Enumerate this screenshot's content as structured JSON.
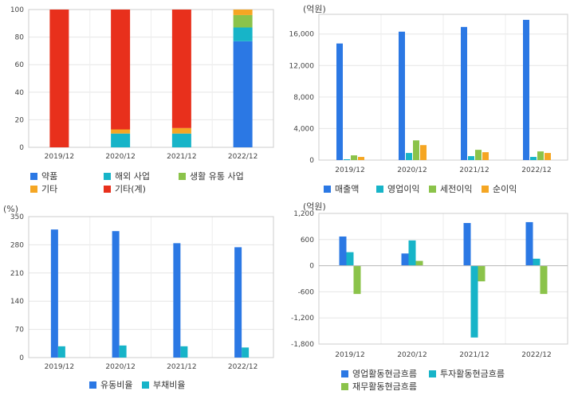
{
  "colors": {
    "blue": "#2b78e4",
    "teal": "#17b4c8",
    "green": "#8bc34a",
    "orange": "#f5a623",
    "red": "#e8301c"
  },
  "chart_data": [
    {
      "type": "bar",
      "stacked": true,
      "categories": [
        "2019/12",
        "2020/12",
        "2021/12",
        "2022/12"
      ],
      "ylim": [
        0,
        100
      ],
      "yticks": [
        0,
        20,
        40,
        60,
        80,
        100
      ],
      "grid": true,
      "legend_position": "bottom",
      "series": [
        {
          "name": "약품",
          "color": "#2b78e4",
          "values": [
            0,
            0,
            0,
            77
          ]
        },
        {
          "name": "해외 사업",
          "color": "#17b4c8",
          "values": [
            0,
            10,
            10,
            10
          ]
        },
        {
          "name": "생활 유통 사업",
          "color": "#8bc34a",
          "values": [
            0,
            0,
            0,
            9
          ]
        },
        {
          "name": "기타",
          "color": "#f5a623",
          "values": [
            0,
            3,
            4,
            4
          ]
        },
        {
          "name": "기타(계)",
          "color": "#e8301c",
          "values": [
            100,
            87,
            86,
            0
          ]
        }
      ]
    },
    {
      "type": "bar",
      "unit": "(억원)",
      "categories": [
        "2019/12",
        "2020/12",
        "2021/12",
        "2022/12"
      ],
      "ylim": [
        0,
        18500
      ],
      "yticks": [
        0,
        4000,
        8000,
        12000,
        16000
      ],
      "ytick_labels": [
        "0",
        "4,000",
        "8,000",
        "12,000",
        "16,000"
      ],
      "grid": true,
      "legend_position": "bottom",
      "series": [
        {
          "name": "매출액",
          "color": "#2b78e4",
          "values": [
            14800,
            16300,
            16900,
            17800
          ]
        },
        {
          "name": "영업이익",
          "color": "#17b4c8",
          "values": [
            100,
            900,
            500,
            400
          ]
        },
        {
          "name": "세전이익",
          "color": "#8bc34a",
          "values": [
            600,
            2500,
            1300,
            1100
          ]
        },
        {
          "name": "순이익",
          "color": "#f5a623",
          "values": [
            400,
            1900,
            1000,
            900
          ]
        }
      ]
    },
    {
      "type": "bar",
      "unit": "(%)",
      "categories": [
        "2019/12",
        "2020/12",
        "2021/12",
        "2022/12"
      ],
      "ylim": [
        0,
        350
      ],
      "yticks": [
        0,
        70,
        140,
        210,
        280,
        350
      ],
      "grid": true,
      "legend_position": "bottom",
      "series": [
        {
          "name": "유동비율",
          "color": "#2b78e4",
          "values": [
            318,
            314,
            284,
            274
          ]
        },
        {
          "name": "부채비율",
          "color": "#17b4c8",
          "values": [
            28,
            30,
            28,
            25
          ]
        }
      ]
    },
    {
      "type": "bar",
      "unit": "(억원)",
      "categories": [
        "2019/12",
        "2020/12",
        "2021/12",
        "2022/12"
      ],
      "ylim": [
        -1800,
        1200
      ],
      "yticks": [
        -1800,
        -1200,
        -600,
        0,
        600,
        1200
      ],
      "ytick_labels": [
        "-1,800",
        "-1,200",
        "-600",
        "0",
        "600",
        "1,200"
      ],
      "grid": true,
      "legend_position": "bottom",
      "series": [
        {
          "name": "영업활동현금흐름",
          "color": "#2b78e4",
          "values": [
            670,
            280,
            980,
            1000
          ]
        },
        {
          "name": "투자활동현금흐름",
          "color": "#17b4c8",
          "values": [
            310,
            580,
            -1650,
            160
          ]
        },
        {
          "name": "재무활동현금흐름",
          "color": "#8bc34a",
          "values": [
            -650,
            110,
            -360,
            -650
          ]
        }
      ]
    }
  ]
}
